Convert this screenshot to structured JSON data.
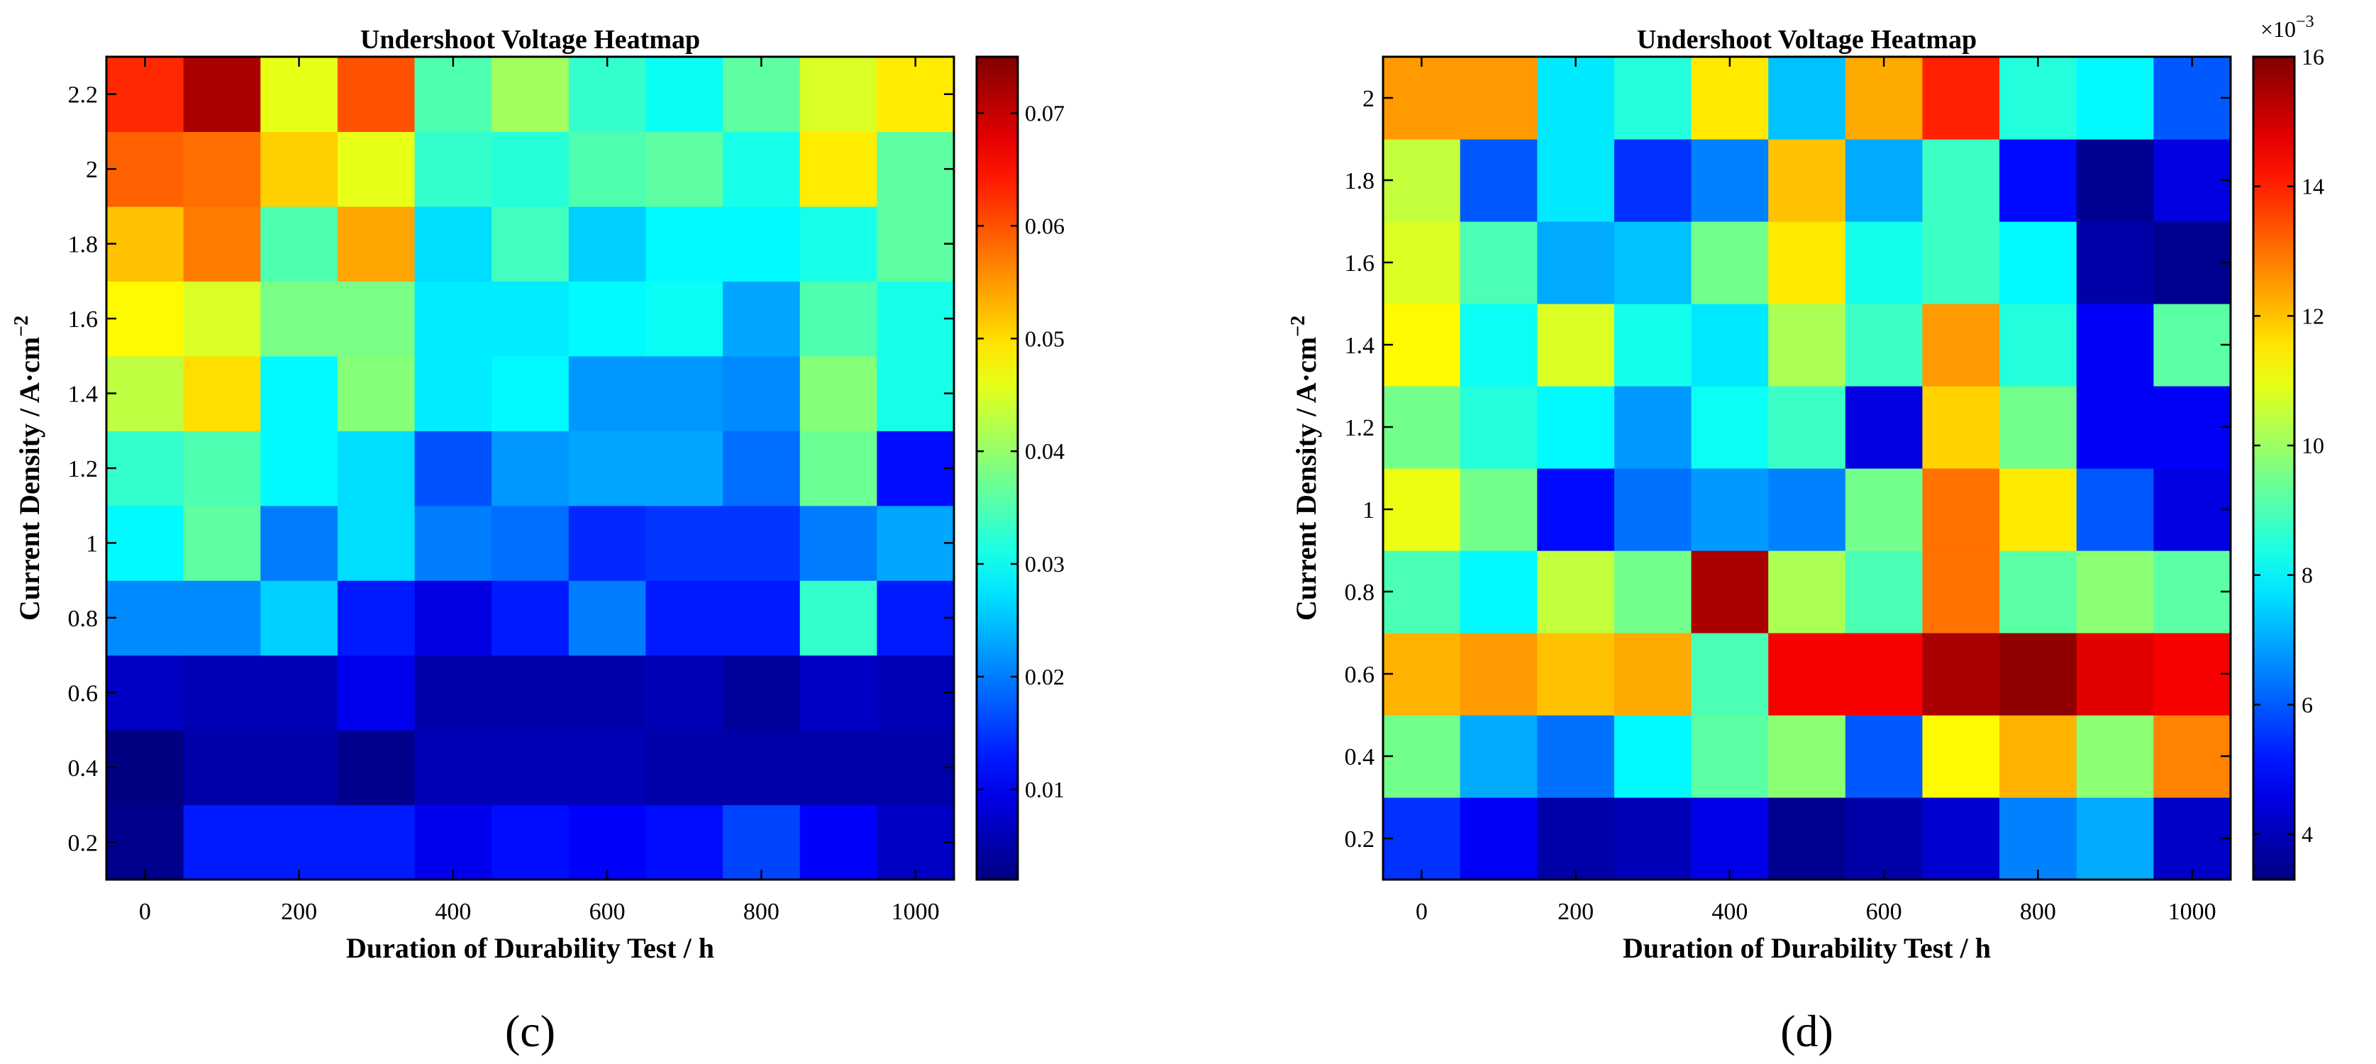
{
  "figure": {
    "panels": [
      {
        "id": "c",
        "panel_label": "(c)",
        "title": "Undershoot Voltage Heatmap",
        "xlabel": "Duration of Durability Test / h",
        "ylabel_main": "Current Density / A·cm",
        "ylabel_sup": "−2",
        "colorbar_ticks": [
          "0.01",
          "0.02",
          "0.03",
          "0.04",
          "0.05",
          "0.06",
          "0.07"
        ],
        "colorbar_exponent": ""
      },
      {
        "id": "d",
        "panel_label": "(d)",
        "title": "Undershoot Voltage Heatmap",
        "xlabel": "Duration of Durability Test / h",
        "ylabel_main": "Current Density / A·cm",
        "ylabel_sup": "−2",
        "colorbar_ticks": [
          "4",
          "6",
          "8",
          "10",
          "12",
          "14",
          "16"
        ],
        "colorbar_exponent_base": "×10",
        "colorbar_exponent_power": "−3"
      }
    ]
  },
  "chart_data": [
    {
      "type": "heatmap",
      "title": "Undershoot Voltage Heatmap",
      "xlabel": "Duration of Durability Test / h",
      "ylabel": "Current Density / A·cm^-2",
      "colormap": "jet",
      "x": [
        0,
        100,
        200,
        300,
        400,
        500,
        600,
        700,
        800,
        900,
        1000
      ],
      "x_ticks": [
        0,
        200,
        400,
        600,
        800,
        1000
      ],
      "y": [
        0.2,
        0.4,
        0.6,
        0.8,
        1.0,
        1.2,
        1.4,
        1.6,
        1.8,
        2.0,
        2.2
      ],
      "y_ticks": [
        0.2,
        0.4,
        0.6,
        0.8,
        1.0,
        1.2,
        1.4,
        1.6,
        1.8,
        2.0,
        2.2
      ],
      "y_tick_labels": [
        "0.2",
        "0.4",
        "0.6",
        "0.8",
        "1",
        "1.2",
        "1.4",
        "1.6",
        "1.8",
        "2",
        "2.2"
      ],
      "xlim": [
        -50,
        1050
      ],
      "ylim": [
        0.1,
        2.3
      ],
      "clim": [
        0.002,
        0.075
      ],
      "colorbar_ticks": [
        0.01,
        0.02,
        0.03,
        0.04,
        0.05,
        0.06,
        0.07
      ],
      "values": [
        [
          0.003,
          0.013,
          0.013,
          0.013,
          0.01,
          0.012,
          0.011,
          0.012,
          0.016,
          0.011,
          0.007
        ],
        [
          0.002,
          0.005,
          0.005,
          0.003,
          0.006,
          0.006,
          0.006,
          0.005,
          0.005,
          0.005,
          0.005
        ],
        [
          0.007,
          0.006,
          0.006,
          0.01,
          0.005,
          0.005,
          0.005,
          0.006,
          0.004,
          0.007,
          0.006
        ],
        [
          0.021,
          0.021,
          0.026,
          0.013,
          0.009,
          0.013,
          0.02,
          0.013,
          0.013,
          0.033,
          0.013
        ],
        [
          0.029,
          0.036,
          0.02,
          0.027,
          0.02,
          0.019,
          0.014,
          0.015,
          0.015,
          0.02,
          0.023
        ],
        [
          0.033,
          0.035,
          0.029,
          0.027,
          0.017,
          0.022,
          0.023,
          0.023,
          0.019,
          0.037,
          0.012
        ],
        [
          0.043,
          0.05,
          0.029,
          0.039,
          0.028,
          0.029,
          0.022,
          0.022,
          0.021,
          0.039,
          0.031
        ],
        [
          0.048,
          0.045,
          0.038,
          0.038,
          0.028,
          0.028,
          0.029,
          0.03,
          0.023,
          0.035,
          0.031
        ],
        [
          0.052,
          0.057,
          0.035,
          0.054,
          0.027,
          0.034,
          0.026,
          0.029,
          0.029,
          0.031,
          0.036
        ],
        [
          0.059,
          0.058,
          0.051,
          0.046,
          0.033,
          0.032,
          0.035,
          0.036,
          0.031,
          0.049,
          0.036
        ],
        [
          0.063,
          0.072,
          0.046,
          0.06,
          0.035,
          0.041,
          0.033,
          0.03,
          0.036,
          0.045,
          0.049
        ]
      ]
    },
    {
      "type": "heatmap",
      "title": "Undershoot Voltage Heatmap",
      "xlabel": "Duration of Durability Test / h",
      "ylabel": "Current Density / A·cm^-2",
      "colormap": "jet",
      "colorbar_scale": "×10^-3",
      "x": [
        0,
        100,
        200,
        300,
        400,
        500,
        600,
        700,
        800,
        900,
        1000
      ],
      "x_ticks": [
        0,
        200,
        400,
        600,
        800,
        1000
      ],
      "y": [
        0.2,
        0.4,
        0.6,
        0.8,
        1.0,
        1.2,
        1.4,
        1.6,
        1.8,
        2.0
      ],
      "y_ticks": [
        0.2,
        0.4,
        0.6,
        0.8,
        1.0,
        1.2,
        1.4,
        1.6,
        1.8,
        2.0
      ],
      "y_tick_labels": [
        "0.2",
        "0.4",
        "0.6",
        "0.8",
        "1",
        "1.2",
        "1.4",
        "1.6",
        "1.8",
        "2"
      ],
      "xlim": [
        -50,
        1050
      ],
      "ylim": [
        0.1,
        2.1
      ],
      "clim": [
        3.3,
        16.0
      ],
      "colorbar_ticks": [
        4,
        6,
        8,
        10,
        12,
        14,
        16
      ],
      "values": [
        [
          5.5,
          4.8,
          3.8,
          4.0,
          4.6,
          3.5,
          3.8,
          4.3,
          6.5,
          7.0,
          4.2
        ],
        [
          9.5,
          7.0,
          6.3,
          8.0,
          9.2,
          9.8,
          6.0,
          11.3,
          12.2,
          9.8,
          12.8
        ],
        [
          12.2,
          12.5,
          12.0,
          12.3,
          9.0,
          14.5,
          14.5,
          15.5,
          15.8,
          14.8,
          14.5
        ],
        [
          9.0,
          8.0,
          10.5,
          9.5,
          15.5,
          10.2,
          9.0,
          13.0,
          9.2,
          9.8,
          9.2
        ],
        [
          11.0,
          9.5,
          5.0,
          6.3,
          6.8,
          6.5,
          9.5,
          13.0,
          11.5,
          6.0,
          4.5
        ],
        [
          9.5,
          8.5,
          8.0,
          6.8,
          8.2,
          8.8,
          4.5,
          11.8,
          9.5,
          4.8,
          4.8
        ],
        [
          11.3,
          8.2,
          10.8,
          8.3,
          7.8,
          10.2,
          8.8,
          12.5,
          8.5,
          4.8,
          9.2
        ],
        [
          10.8,
          9.0,
          7.0,
          7.3,
          9.5,
          11.5,
          8.3,
          8.8,
          8.0,
          3.8,
          3.5
        ],
        [
          10.5,
          6.0,
          7.8,
          5.5,
          6.5,
          12.0,
          7.0,
          8.8,
          5.0,
          3.5,
          4.5
        ],
        [
          12.5,
          12.5,
          7.8,
          8.5,
          11.5,
          7.3,
          12.3,
          14.0,
          8.5,
          8.0,
          6.0
        ]
      ]
    }
  ]
}
